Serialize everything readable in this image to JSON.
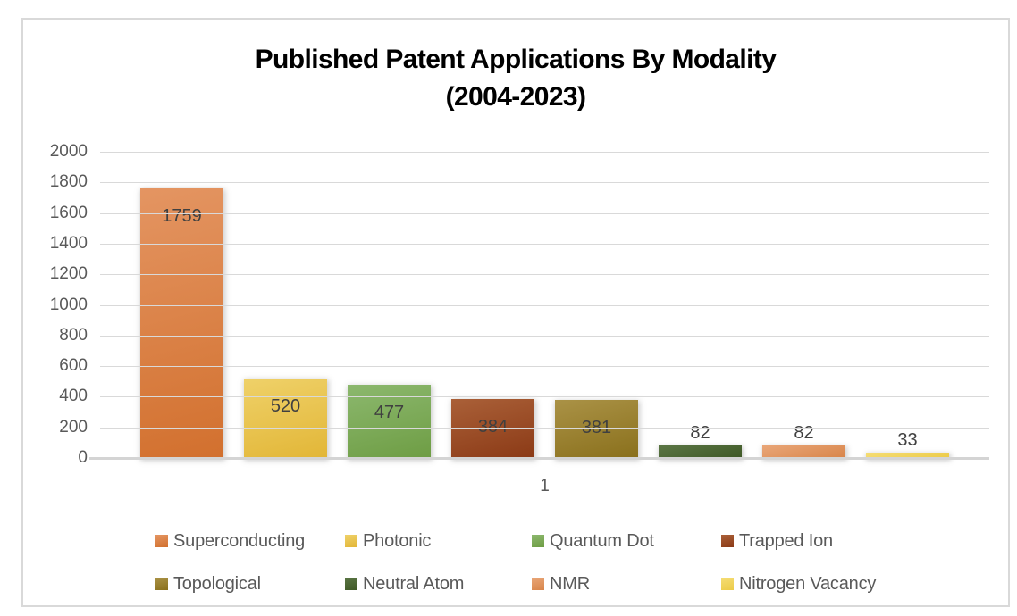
{
  "chart_data": {
    "type": "bar",
    "title": "Published Patent Applications By Modality (2004-2023)",
    "title_line1": "Published Patent Applications By Modality",
    "title_line2": "(2004-2023)",
    "xlabel": "",
    "ylabel": "",
    "categories": [
      "1"
    ],
    "category_label": "1",
    "ylim": [
      0,
      2000
    ],
    "ytick_step": 200,
    "yticks": [
      "2000",
      "1800",
      "1600",
      "1400",
      "1200",
      "1000",
      "800",
      "600",
      "400",
      "200",
      "0"
    ],
    "grid": true,
    "legend_position": "bottom",
    "legend_rows": 2,
    "series": [
      {
        "name": "Superconducting",
        "value": 1759,
        "label_inside": true,
        "legend_color": "#da7a3e",
        "color_light": "#e49562",
        "color_dark": "#d2702e"
      },
      {
        "name": "Photonic",
        "value": 520,
        "label_inside": true,
        "legend_color": "#e9c544",
        "color_light": "#efd169",
        "color_dark": "#e2b637"
      },
      {
        "name": "Quantum Dot",
        "value": 477,
        "label_inside": true,
        "legend_color": "#7eac55",
        "color_light": "#8cb86e",
        "color_dark": "#6e9d44"
      },
      {
        "name": "Trapped Ion",
        "value": 384,
        "label_inside": true,
        "legend_color": "#94421c",
        "color_light": "#aa6038",
        "color_dark": "#8b3a16"
      },
      {
        "name": "Topological",
        "value": 381,
        "label_inside": true,
        "legend_color": "#977b26",
        "color_light": "#aa9246",
        "color_dark": "#8a701c"
      },
      {
        "name": "Neutral Atom",
        "value": 82,
        "label_inside": false,
        "legend_color": "#4a612f",
        "color_light": "#5a7544",
        "color_dark": "#3f5926"
      },
      {
        "name": "NMR",
        "value": 82,
        "label_inside": false,
        "legend_color": "#e2955f",
        "color_light": "#e9a678",
        "color_dark": "#d8854a"
      },
      {
        "name": "Nitrogen Vacancy",
        "value": 33,
        "label_inside": false,
        "legend_color": "#f1d55c",
        "color_light": "#f5dd75",
        "color_dark": "#eccb48"
      }
    ],
    "colors": {
      "grid": "#d9d9d9",
      "axis_line": "#d4d4d4",
      "axis_text": "#595959",
      "value_label_text": "#404040",
      "title_text": "#000000",
      "frame_border": "#d9d9d9",
      "background": "#ffffff"
    }
  }
}
